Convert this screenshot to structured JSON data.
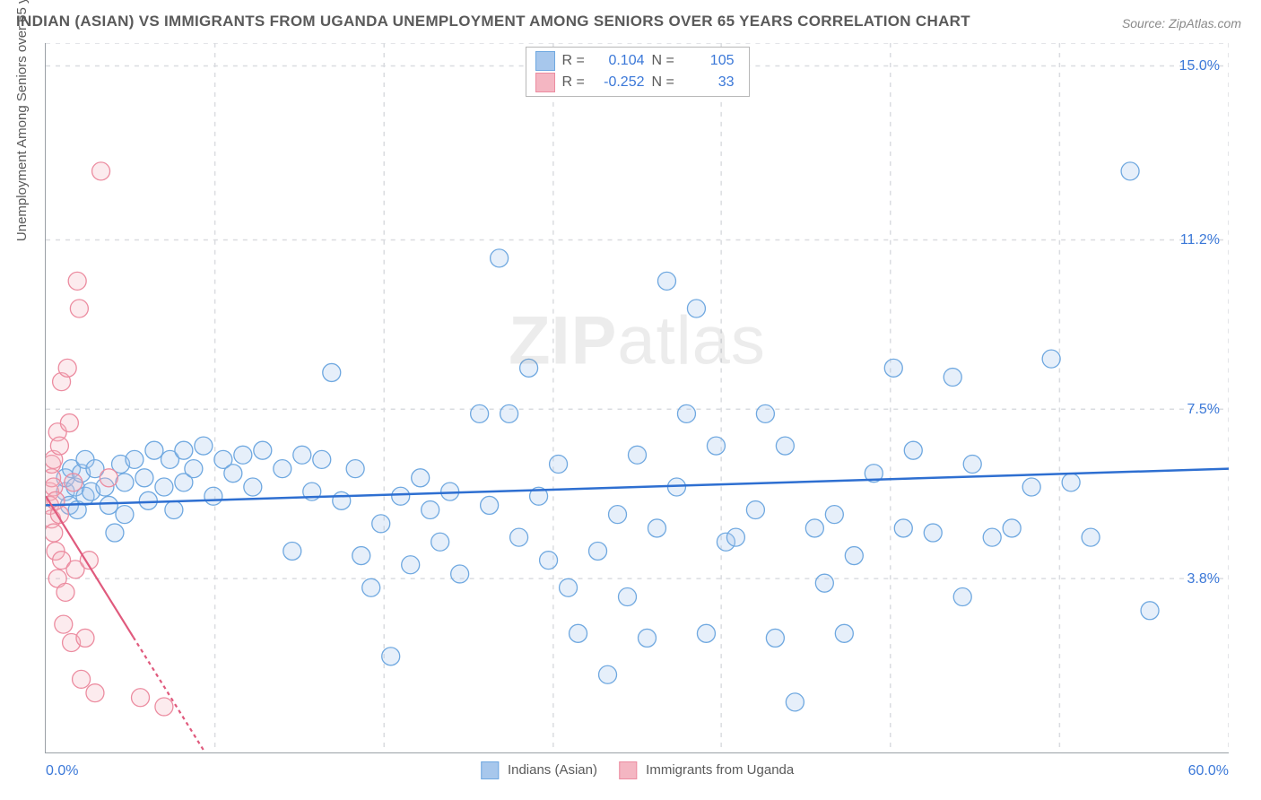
{
  "title": "INDIAN (ASIAN) VS IMMIGRANTS FROM UGANDA UNEMPLOYMENT AMONG SENIORS OVER 65 YEARS CORRELATION CHART",
  "source": "Source: ZipAtlas.com",
  "watermark": "ZIPatlas",
  "y_axis_title": "Unemployment Among Seniors over 65 years",
  "chart": {
    "type": "scatter",
    "background_color": "#ffffff",
    "grid_color": "#dadce0",
    "axis_color": "#9aa0a6",
    "xlim": [
      0,
      60
    ],
    "ylim": [
      0,
      15.5
    ],
    "x_ticks": [
      {
        "pos": 0.0,
        "label": "0.0%"
      },
      {
        "pos": 60.0,
        "label": "60.0%"
      }
    ],
    "x_grid_positions_pct": [
      14.3,
      28.6,
      42.9,
      57.1,
      71.4,
      85.7,
      100.0
    ],
    "y_ticks": [
      {
        "val": 3.8,
        "label": "3.8%"
      },
      {
        "val": 7.5,
        "label": "7.5%"
      },
      {
        "val": 11.2,
        "label": "11.2%"
      },
      {
        "val": 15.0,
        "label": "15.0%"
      }
    ],
    "marker_radius": 10,
    "marker_fill_opacity": 0.28,
    "marker_stroke_width": 1.3,
    "series": [
      {
        "name": "Indians (Asian)",
        "fill_color": "#a7c7ec",
        "stroke_color": "#6fa8e0",
        "trend_color": "#2e6fd1",
        "trend_width": 2.5,
        "trend_dash": "none",
        "trend_y_at_xmin": 5.4,
        "trend_y_at_xmax": 6.2,
        "R": "0.104",
        "N": "105",
        "points": [
          [
            1.0,
            5.7
          ],
          [
            1.0,
            6.0
          ],
          [
            1.2,
            5.4
          ],
          [
            1.3,
            6.2
          ],
          [
            1.5,
            5.8
          ],
          [
            1.6,
            5.3
          ],
          [
            1.8,
            6.1
          ],
          [
            2.0,
            5.6
          ],
          [
            2.0,
            6.4
          ],
          [
            2.3,
            5.7
          ],
          [
            2.5,
            6.2
          ],
          [
            3.0,
            5.8
          ],
          [
            3.2,
            5.4
          ],
          [
            3.5,
            4.8
          ],
          [
            3.8,
            6.3
          ],
          [
            4.0,
            5.9
          ],
          [
            4.0,
            5.2
          ],
          [
            4.5,
            6.4
          ],
          [
            5.0,
            6.0
          ],
          [
            5.2,
            5.5
          ],
          [
            5.5,
            6.6
          ],
          [
            6.0,
            5.8
          ],
          [
            6.3,
            6.4
          ],
          [
            6.5,
            5.3
          ],
          [
            7.0,
            6.6
          ],
          [
            7.0,
            5.9
          ],
          [
            7.5,
            6.2
          ],
          [
            8.0,
            6.7
          ],
          [
            8.5,
            5.6
          ],
          [
            9.0,
            6.4
          ],
          [
            9.5,
            6.1
          ],
          [
            10.0,
            6.5
          ],
          [
            10.5,
            5.8
          ],
          [
            11.0,
            6.6
          ],
          [
            12.0,
            6.2
          ],
          [
            12.5,
            4.4
          ],
          [
            13.0,
            6.5
          ],
          [
            13.5,
            5.7
          ],
          [
            14.0,
            6.4
          ],
          [
            14.5,
            8.3
          ],
          [
            15.0,
            5.5
          ],
          [
            15.7,
            6.2
          ],
          [
            16.0,
            4.3
          ],
          [
            16.5,
            3.6
          ],
          [
            17.0,
            5.0
          ],
          [
            17.5,
            2.1
          ],
          [
            18.0,
            5.6
          ],
          [
            18.5,
            4.1
          ],
          [
            19.0,
            6.0
          ],
          [
            19.5,
            5.3
          ],
          [
            20.0,
            4.6
          ],
          [
            20.5,
            5.7
          ],
          [
            21.0,
            3.9
          ],
          [
            22.0,
            7.4
          ],
          [
            22.5,
            5.4
          ],
          [
            23.0,
            10.8
          ],
          [
            23.5,
            7.4
          ],
          [
            24.0,
            4.7
          ],
          [
            24.5,
            8.4
          ],
          [
            25.0,
            5.6
          ],
          [
            25.5,
            4.2
          ],
          [
            26.0,
            6.3
          ],
          [
            26.5,
            3.6
          ],
          [
            27.0,
            2.6
          ],
          [
            28.0,
            4.4
          ],
          [
            28.5,
            1.7
          ],
          [
            29.0,
            5.2
          ],
          [
            29.5,
            3.4
          ],
          [
            30.0,
            6.5
          ],
          [
            30.5,
            2.5
          ],
          [
            31.0,
            4.9
          ],
          [
            31.5,
            10.3
          ],
          [
            32.0,
            5.8
          ],
          [
            32.5,
            7.4
          ],
          [
            33.0,
            9.7
          ],
          [
            33.5,
            2.6
          ],
          [
            34.0,
            6.7
          ],
          [
            34.5,
            4.6
          ],
          [
            35.0,
            4.7
          ],
          [
            36.0,
            5.3
          ],
          [
            36.5,
            7.4
          ],
          [
            37.0,
            2.5
          ],
          [
            37.5,
            6.7
          ],
          [
            38.0,
            1.1
          ],
          [
            39.0,
            4.9
          ],
          [
            39.5,
            3.7
          ],
          [
            40.0,
            5.2
          ],
          [
            40.5,
            2.6
          ],
          [
            41.0,
            4.3
          ],
          [
            42.0,
            6.1
          ],
          [
            43.0,
            8.4
          ],
          [
            43.5,
            4.9
          ],
          [
            45.0,
            4.8
          ],
          [
            46.0,
            8.2
          ],
          [
            46.5,
            3.4
          ],
          [
            48.0,
            4.7
          ],
          [
            50.0,
            5.8
          ],
          [
            51.0,
            8.6
          ],
          [
            53.0,
            4.7
          ],
          [
            55.0,
            12.7
          ],
          [
            56.0,
            3.1
          ],
          [
            52.0,
            5.9
          ],
          [
            44.0,
            6.6
          ],
          [
            47.0,
            6.3
          ],
          [
            49.0,
            4.9
          ]
        ]
      },
      {
        "name": "Immigrants from Uganda",
        "fill_color": "#f4b6c2",
        "stroke_color": "#ec8ca0",
        "trend_color": "#e05a7d",
        "trend_width": 2.2,
        "trend_dash": "4 4",
        "trend_y_at_xmin": 5.6,
        "trend_y_at_xmax": -36.0,
        "R": "-0.252",
        "N": "33",
        "points": [
          [
            0.2,
            5.7
          ],
          [
            0.2,
            5.4
          ],
          [
            0.3,
            6.0
          ],
          [
            0.3,
            5.1
          ],
          [
            0.3,
            6.3
          ],
          [
            0.4,
            5.8
          ],
          [
            0.4,
            4.8
          ],
          [
            0.4,
            6.4
          ],
          [
            0.5,
            5.5
          ],
          [
            0.5,
            4.4
          ],
          [
            0.6,
            7.0
          ],
          [
            0.6,
            3.8
          ],
          [
            0.7,
            5.2
          ],
          [
            0.7,
            6.7
          ],
          [
            0.8,
            4.2
          ],
          [
            0.8,
            8.1
          ],
          [
            0.9,
            2.8
          ],
          [
            1.0,
            3.5
          ],
          [
            1.1,
            8.4
          ],
          [
            1.2,
            7.2
          ],
          [
            1.3,
            2.4
          ],
          [
            1.4,
            5.9
          ],
          [
            1.5,
            4.0
          ],
          [
            1.6,
            10.3
          ],
          [
            1.8,
            1.6
          ],
          [
            2.0,
            2.5
          ],
          [
            2.2,
            4.2
          ],
          [
            2.5,
            1.3
          ],
          [
            2.8,
            12.7
          ],
          [
            1.7,
            9.7
          ],
          [
            3.2,
            6.0
          ],
          [
            4.8,
            1.2
          ],
          [
            6.0,
            1.0
          ]
        ]
      }
    ],
    "bottom_legend": [
      {
        "label": "Indians (Asian)",
        "fill": "#a7c7ec",
        "stroke": "#6fa8e0"
      },
      {
        "label": "Immigrants from Uganda",
        "fill": "#f4b6c2",
        "stroke": "#ec8ca0"
      }
    ],
    "stats_box_swatches": [
      {
        "fill": "#a7c7ec",
        "stroke": "#6fa8e0"
      },
      {
        "fill": "#f4b6c2",
        "stroke": "#ec8ca0"
      }
    ]
  }
}
